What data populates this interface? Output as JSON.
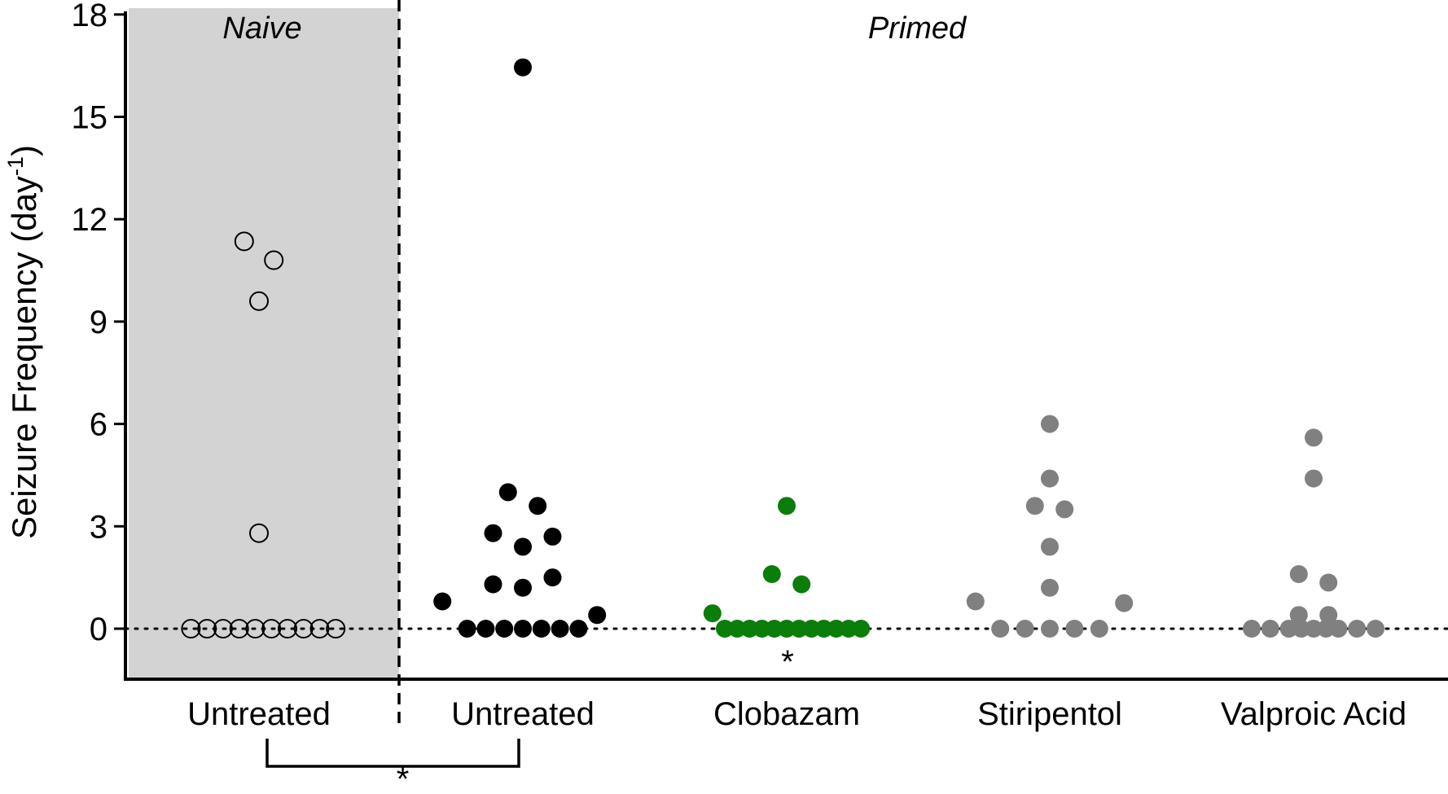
{
  "chart_data": {
    "type": "scatter",
    "ylabel": "Seizure Frequency (day",
    "ylabel_superscript": "-1",
    "ylabel_close": ")",
    "yticks": [
      0,
      3,
      6,
      9,
      12,
      15,
      18
    ],
    "ylim": [
      -1.5,
      18
    ],
    "grid": false,
    "regions": [
      {
        "label": "Naive",
        "shaded": true,
        "shade_color": "#d3d3d3"
      },
      {
        "label": "Primed",
        "shaded": false
      }
    ],
    "categories": [
      "Untreated",
      "Untreated",
      "Clobazam",
      "Stiripentol",
      "Valproic Acid"
    ],
    "series": [
      {
        "group": "Naive",
        "category": "Untreated",
        "marker": "open-circle",
        "color": "#000000",
        "points": [
          {
            "offset": -0.55,
            "y": 0
          },
          {
            "offset": -0.42,
            "y": 0
          },
          {
            "offset": -0.29,
            "y": 0
          },
          {
            "offset": -0.16,
            "y": 0
          },
          {
            "offset": -0.03,
            "y": 0
          },
          {
            "offset": 0.1,
            "y": 0
          },
          {
            "offset": 0.23,
            "y": 0
          },
          {
            "offset": 0.36,
            "y": 0
          },
          {
            "offset": 0.49,
            "y": 0
          },
          {
            "offset": 0.62,
            "y": 0
          },
          {
            "offset": -0.12,
            "y": 11.35
          },
          {
            "offset": 0.12,
            "y": 10.8
          },
          {
            "offset": 0.0,
            "y": 9.6
          },
          {
            "offset": 0.0,
            "y": 2.8
          }
        ]
      },
      {
        "group": "Primed",
        "category": "Untreated",
        "marker": "filled-circle",
        "color": "#000000",
        "points": [
          {
            "offset": 0.0,
            "y": 16.45
          },
          {
            "offset": -0.12,
            "y": 4.0
          },
          {
            "offset": 0.12,
            "y": 3.6
          },
          {
            "offset": -0.24,
            "y": 2.8
          },
          {
            "offset": 0.24,
            "y": 2.7
          },
          {
            "offset": 0.0,
            "y": 2.4
          },
          {
            "offset": -0.24,
            "y": 1.3
          },
          {
            "offset": 0.0,
            "y": 1.2
          },
          {
            "offset": 0.24,
            "y": 1.5
          },
          {
            "offset": -0.65,
            "y": 0.8
          },
          {
            "offset": 0.6,
            "y": 0.4
          },
          {
            "offset": -0.45,
            "y": 0
          },
          {
            "offset": -0.3,
            "y": 0
          },
          {
            "offset": -0.15,
            "y": 0
          },
          {
            "offset": 0.0,
            "y": 0
          },
          {
            "offset": 0.15,
            "y": 0
          },
          {
            "offset": 0.3,
            "y": 0
          },
          {
            "offset": 0.45,
            "y": 0
          }
        ]
      },
      {
        "group": "Primed",
        "category": "Clobazam",
        "marker": "filled-circle",
        "color": "#0a7d0a",
        "points": [
          {
            "offset": 0.0,
            "y": 3.6
          },
          {
            "offset": -0.12,
            "y": 1.6
          },
          {
            "offset": 0.12,
            "y": 1.3
          },
          {
            "offset": -0.6,
            "y": 0.45
          },
          {
            "offset": -0.5,
            "y": 0
          },
          {
            "offset": -0.4,
            "y": 0
          },
          {
            "offset": -0.3,
            "y": 0
          },
          {
            "offset": -0.2,
            "y": 0
          },
          {
            "offset": -0.1,
            "y": 0
          },
          {
            "offset": 0.0,
            "y": 0
          },
          {
            "offset": 0.1,
            "y": 0
          },
          {
            "offset": 0.2,
            "y": 0
          },
          {
            "offset": 0.3,
            "y": 0
          },
          {
            "offset": 0.4,
            "y": 0
          },
          {
            "offset": 0.5,
            "y": 0
          },
          {
            "offset": 0.6,
            "y": 0
          }
        ]
      },
      {
        "group": "Primed",
        "category": "Stiripentol",
        "marker": "filled-circle",
        "color": "#808080",
        "points": [
          {
            "offset": 0.0,
            "y": 6.0
          },
          {
            "offset": 0.0,
            "y": 4.4
          },
          {
            "offset": -0.12,
            "y": 3.6
          },
          {
            "offset": 0.12,
            "y": 3.5
          },
          {
            "offset": 0.0,
            "y": 2.4
          },
          {
            "offset": 0.0,
            "y": 1.2
          },
          {
            "offset": -0.6,
            "y": 0.8
          },
          {
            "offset": 0.6,
            "y": 0.75
          },
          {
            "offset": -0.4,
            "y": 0
          },
          {
            "offset": -0.2,
            "y": 0
          },
          {
            "offset": 0.0,
            "y": 0
          },
          {
            "offset": 0.2,
            "y": 0
          },
          {
            "offset": 0.4,
            "y": 0
          }
        ]
      },
      {
        "group": "Primed",
        "category": "Valproic Acid",
        "marker": "filled-circle",
        "color": "#808080",
        "points": [
          {
            "offset": 0.0,
            "y": 5.6
          },
          {
            "offset": 0.0,
            "y": 4.4
          },
          {
            "offset": -0.12,
            "y": 1.6
          },
          {
            "offset": 0.12,
            "y": 1.35
          },
          {
            "offset": -0.12,
            "y": 0.4
          },
          {
            "offset": 0.12,
            "y": 0.4
          },
          {
            "offset": -0.5,
            "y": 0
          },
          {
            "offset": -0.35,
            "y": 0
          },
          {
            "offset": -0.2,
            "y": 0
          },
          {
            "offset": -0.1,
            "y": 0
          },
          {
            "offset": 0.0,
            "y": 0
          },
          {
            "offset": 0.1,
            "y": 0
          },
          {
            "offset": 0.2,
            "y": 0
          },
          {
            "offset": 0.35,
            "y": 0
          },
          {
            "offset": 0.5,
            "y": 0
          }
        ]
      }
    ],
    "annotations": [
      {
        "text": "*",
        "category_index": 2,
        "position": "below-zero"
      },
      {
        "text": "*",
        "bracket_between": [
          0,
          1
        ],
        "position": "below-axis"
      }
    ],
    "reference_line": {
      "y": 0,
      "style": "dotted"
    },
    "divider": {
      "between": [
        0,
        1
      ],
      "style": "dashed"
    }
  }
}
